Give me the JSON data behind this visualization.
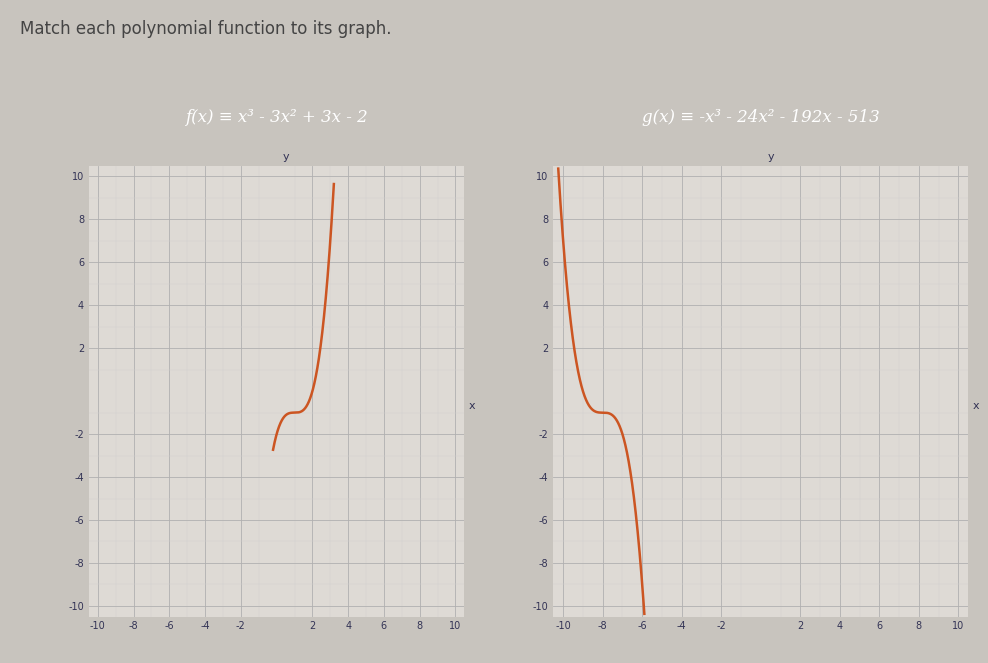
{
  "title": "Match each polynomial function to its graph.",
  "f_label": "f(x) ≡ x³ - 3x² + 3x - 2",
  "g_label": "g(x) ≡ -x³ - 24x² - 192x - 513",
  "curve_color": "#cc5522",
  "bg_color": "#c8c4be",
  "grid_major_color": "#b0b0b0",
  "grid_minor_color": "#d0d0d0",
  "graph_bg": "#dedad5",
  "axis_color": "#333355",
  "label_box_color": "#4a8bbf",
  "label_text_color": "#ffffff",
  "xlim": [
    -10.5,
    10.5
  ],
  "ylim": [
    -10.5,
    10.5
  ],
  "xticks": [
    -10,
    -8,
    -6,
    -4,
    -2,
    2,
    4,
    6,
    8,
    10
  ],
  "yticks": [
    -10,
    -8,
    -6,
    -4,
    -2,
    2,
    4,
    6,
    8,
    10
  ],
  "minor_xticks": [
    -9,
    -7,
    -5,
    -3,
    -1,
    1,
    3,
    5,
    7,
    9
  ],
  "minor_yticks": [
    -9,
    -7,
    -5,
    -3,
    -1,
    1,
    3,
    5,
    7,
    9
  ],
  "title_fontsize": 12,
  "label_fontsize": 12,
  "tick_fontsize": 7,
  "curve_lw": 1.8
}
